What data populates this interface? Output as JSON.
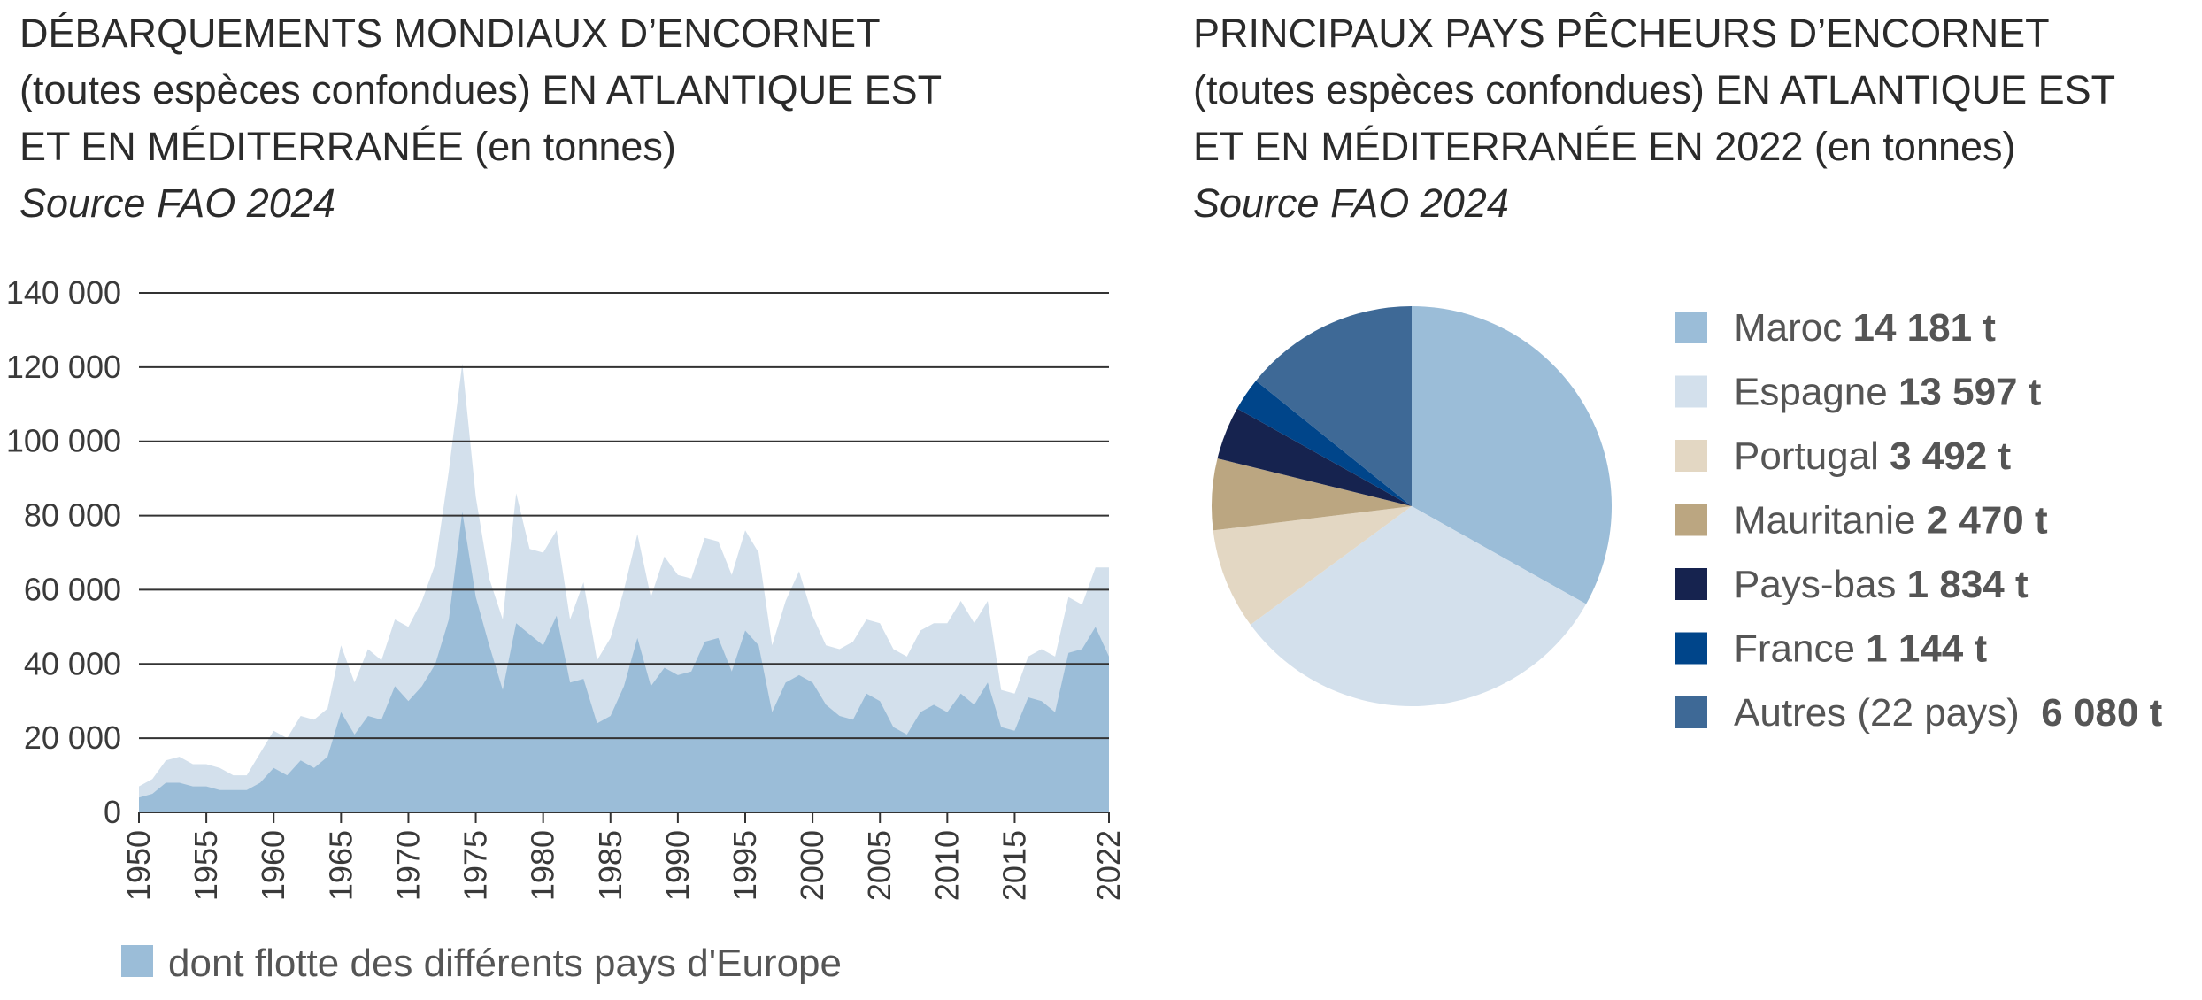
{
  "left": {
    "title_lines": [
      "DÉBARQUEMENTS MONDIAUX D’ENCORNET",
      "(toutes espèces confondues) EN ATLANTIQUE EST",
      "ET EN MÉDITERRANÉE (en tonnes)"
    ],
    "source": "Source FAO 2024",
    "legend_label": "dont flotte des différents pays d'Europe"
  },
  "right": {
    "title_lines": [
      "PRINCIPAUX PAYS PÊCHEURS D’ENCORNET",
      "(toutes espèces confondues) EN ATLANTIQUE EST",
      "ET EN MÉDITERRANÉE EN 2022 (en tonnes)"
    ],
    "source": "Source FAO 2024"
  },
  "colors": {
    "total_area": "#d3e0ec",
    "europe_area": "#9bbdd8",
    "grid": "#333333"
  },
  "chart_data": [
    {
      "type": "area",
      "ylim": [
        0,
        140000
      ],
      "yticks": [
        0,
        20000,
        40000,
        60000,
        80000,
        100000,
        120000,
        140000
      ],
      "ytick_labels": [
        "0",
        "20 000",
        "40 000",
        "60 000",
        "80 000",
        "100 000",
        "120 000",
        "140 000"
      ],
      "xtick_labels": [
        "1950",
        "1955",
        "1960",
        "1965",
        "1970",
        "1975",
        "1980",
        "1985",
        "1990",
        "1995",
        "2000",
        "2005",
        "2010",
        "2015",
        "2022"
      ],
      "xtick_years": [
        1950,
        1955,
        1960,
        1965,
        1970,
        1975,
        1980,
        1985,
        1990,
        1995,
        2000,
        2005,
        2010,
        2015,
        2022
      ],
      "grid": "horizontal",
      "legend": "bottom-left",
      "x": [
        1950,
        1951,
        1952,
        1953,
        1954,
        1955,
        1956,
        1957,
        1958,
        1959,
        1960,
        1961,
        1962,
        1963,
        1964,
        1965,
        1966,
        1967,
        1968,
        1969,
        1970,
        1971,
        1972,
        1973,
        1974,
        1975,
        1976,
        1977,
        1978,
        1979,
        1980,
        1981,
        1982,
        1983,
        1984,
        1985,
        1986,
        1987,
        1988,
        1989,
        1990,
        1991,
        1992,
        1993,
        1994,
        1995,
        1996,
        1997,
        1998,
        1999,
        2000,
        2001,
        2002,
        2003,
        2004,
        2005,
        2006,
        2007,
        2008,
        2009,
        2010,
        2011,
        2012,
        2013,
        2014,
        2015,
        2016,
        2017,
        2018,
        2019,
        2020,
        2021,
        2022
      ],
      "series": [
        {
          "values": [
            7000,
            9000,
            14000,
            15000,
            13000,
            13000,
            12000,
            10000,
            10000,
            16000,
            22000,
            20000,
            26000,
            25000,
            28000,
            45000,
            35000,
            44000,
            41000,
            52000,
            50000,
            57000,
            67000,
            92000,
            121000,
            85000,
            63000,
            52000,
            86000,
            71000,
            70000,
            76000,
            52000,
            62000,
            41000,
            47000,
            60000,
            75000,
            58000,
            69000,
            64000,
            63000,
            74000,
            73000,
            64000,
            76000,
            70000,
            45000,
            57000,
            65000,
            53000,
            45000,
            44000,
            46000,
            52000,
            51000,
            44000,
            42000,
            49000,
            51000,
            51000,
            57000,
            51000,
            57000,
            33000,
            32000,
            42000,
            44000,
            42000,
            58000,
            56000,
            66000,
            66000
          ]
        },
        {
          "name": "dont flotte des différents pays d'Europe",
          "values": [
            4000,
            5000,
            8000,
            8000,
            7000,
            7000,
            6000,
            6000,
            6000,
            8000,
            12000,
            10000,
            14000,
            12000,
            15000,
            27000,
            21000,
            26000,
            25000,
            34000,
            30000,
            34000,
            40000,
            52000,
            81000,
            58000,
            45000,
            33000,
            51000,
            48000,
            45000,
            53000,
            35000,
            36000,
            24000,
            26000,
            34000,
            47000,
            34000,
            39000,
            37000,
            38000,
            46000,
            47000,
            38000,
            49000,
            45000,
            27000,
            35000,
            37000,
            35000,
            29000,
            26000,
            25000,
            32000,
            30000,
            23000,
            21000,
            27000,
            29000,
            27000,
            32000,
            29000,
            35000,
            23000,
            22000,
            31000,
            30000,
            27000,
            43000,
            44000,
            50000,
            42000
          ]
        }
      ]
    },
    {
      "type": "pie",
      "unit": "t",
      "slices": [
        {
          "label": "Maroc",
          "value": 14181,
          "value_text": "14 181 t",
          "color": "#9bbdd8"
        },
        {
          "label": "Espagne",
          "value": 13597,
          "value_text": "13 597 t",
          "color": "#d3e0ec"
        },
        {
          "label": "Portugal",
          "value": 3492,
          "value_text": "3 492 t",
          "color": "#e3d7c3"
        },
        {
          "label": "Mauritanie",
          "value": 2470,
          "value_text": "2 470 t",
          "color": "#bba681"
        },
        {
          "label": "Pays-bas",
          "value": 1834,
          "value_text": "1 834 t",
          "color": "#16234f"
        },
        {
          "label": "France",
          "value": 1144,
          "value_text": "1 144 t",
          "color": "#00458a"
        },
        {
          "label": "Autres (22 pays)",
          "value": 6080,
          "value_text": "6 080 t",
          "color": "#3e6996"
        }
      ]
    }
  ]
}
